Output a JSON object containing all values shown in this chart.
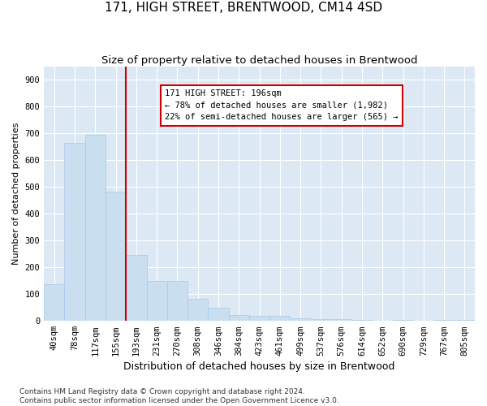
{
  "title": "171, HIGH STREET, BRENTWOOD, CM14 4SD",
  "subtitle": "Size of property relative to detached houses in Brentwood",
  "xlabel": "Distribution of detached houses by size in Brentwood",
  "ylabel": "Number of detached properties",
  "bar_labels": [
    "40sqm",
    "78sqm",
    "117sqm",
    "155sqm",
    "193sqm",
    "231sqm",
    "270sqm",
    "308sqm",
    "346sqm",
    "384sqm",
    "423sqm",
    "461sqm",
    "499sqm",
    "537sqm",
    "576sqm",
    "614sqm",
    "652sqm",
    "690sqm",
    "729sqm",
    "767sqm",
    "805sqm"
  ],
  "bar_values": [
    138,
    665,
    693,
    483,
    247,
    148,
    148,
    83,
    48,
    22,
    18,
    18,
    10,
    8,
    8,
    5,
    0,
    5,
    0,
    5,
    5
  ],
  "bar_color": "#c9dff0",
  "bar_edge_color": "#a8c8e8",
  "vline_index": 4,
  "vline_color": "#cc0000",
  "annot_text": "171 HIGH STREET: 196sqm\n← 78% of detached houses are smaller (1,982)\n22% of semi-detached houses are larger (565) →",
  "annot_edge_color": "#cc0000",
  "plot_bg_color": "#dce9f5",
  "fig_bg_color": "#ffffff",
  "ylim": [
    0,
    950
  ],
  "yticks": [
    0,
    100,
    200,
    300,
    400,
    500,
    600,
    700,
    800,
    900
  ],
  "grid_color": "#ffffff",
  "footnote": "Contains HM Land Registry data © Crown copyright and database right 2024.\nContains public sector information licensed under the Open Government Licence v3.0.",
  "title_fontsize": 11,
  "subtitle_fontsize": 9.5,
  "xlabel_fontsize": 9,
  "ylabel_fontsize": 8,
  "tick_fontsize": 7.5,
  "annot_fontsize": 7.5,
  "footnote_fontsize": 6.5
}
